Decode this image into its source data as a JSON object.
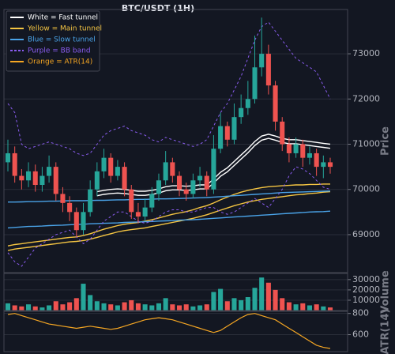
{
  "chart_data": [
    {
      "type": "candlestick",
      "title": "BTC/USDT (1H)",
      "ylabel": "Price",
      "legend": "upper left",
      "grid": true,
      "ylim": [
        68160,
        73980
      ],
      "yticks": [
        69000,
        70000,
        71000,
        72000,
        73000
      ],
      "up_color": "#26a69a",
      "down_color": "#ef5350",
      "open": [
        70600,
        70800,
        70300,
        70200,
        70400,
        70100,
        70300,
        70500,
        69900,
        69700,
        69500,
        69100,
        69500,
        70000,
        70400,
        70700,
        70300,
        70500,
        70000,
        69500,
        69400,
        69600,
        69900,
        70200,
        70600,
        70300,
        70000,
        69900,
        70200,
        70300,
        70000,
        70900,
        71400,
        71100,
        71600,
        71800,
        72000,
        72700,
        73000,
        72300,
        71500,
        71000,
        70800,
        71000,
        70700,
        70800,
        70500,
        70600
      ],
      "high": [
        71100,
        70950,
        70450,
        70600,
        70550,
        70500,
        70750,
        70600,
        70050,
        69850,
        69600,
        69700,
        70200,
        70600,
        70900,
        70800,
        70650,
        70600,
        70100,
        69700,
        69800,
        70050,
        70350,
        70850,
        70700,
        70400,
        70150,
        70350,
        70500,
        70400,
        71200,
        71700,
        71500,
        71900,
        72100,
        72400,
        73400,
        73800,
        73200,
        72400,
        71600,
        71150,
        71150,
        71100,
        70950,
        70900,
        70750,
        70700
      ],
      "low": [
        70400,
        70150,
        70000,
        70050,
        69950,
        69950,
        70150,
        69750,
        69500,
        69300,
        68950,
        69000,
        69400,
        69850,
        70250,
        70150,
        70200,
        69850,
        69350,
        69250,
        69300,
        69500,
        69750,
        70100,
        70150,
        69850,
        69750,
        69800,
        70050,
        69850,
        69900,
        70800,
        70950,
        71000,
        71450,
        71650,
        71900,
        72500,
        72100,
        71300,
        70850,
        70600,
        70700,
        70500,
        70550,
        70300,
        70250,
        70350
      ],
      "close": [
        70800,
        70300,
        70200,
        70400,
        70100,
        70300,
        70500,
        69900,
        69700,
        69500,
        69100,
        69500,
        70000,
        70400,
        70700,
        70300,
        70500,
        70000,
        69500,
        69400,
        69600,
        69900,
        70200,
        70600,
        70300,
        70000,
        69900,
        70200,
        70300,
        70000,
        70900,
        71400,
        71100,
        71600,
        71800,
        72000,
        72700,
        73000,
        72300,
        71500,
        71000,
        70800,
        71000,
        70700,
        70800,
        70500,
        70600,
        70500
      ],
      "series": [
        {
          "name": "White = Fast tunnel",
          "color": "#ffffff",
          "dash": false,
          "upper": [
            null,
            null,
            null,
            null,
            null,
            null,
            null,
            null,
            null,
            null,
            null,
            null,
            null,
            69950,
            69980,
            70000,
            70010,
            70000,
            69980,
            69960,
            69960,
            69980,
            70010,
            70060,
            70080,
            70080,
            70070,
            70080,
            70100,
            70100,
            70230,
            70380,
            70480,
            70620,
            70760,
            70900,
            71060,
            71180,
            71220,
            71180,
            71130,
            71100,
            71100,
            71080,
            71060,
            71040,
            71020,
            71000
          ],
          "lower": [
            null,
            null,
            null,
            null,
            null,
            null,
            null,
            null,
            null,
            null,
            null,
            null,
            null,
            69860,
            69890,
            69910,
            69920,
            69910,
            69890,
            69870,
            69870,
            69890,
            69920,
            69970,
            69990,
            69990,
            69980,
            69990,
            70010,
            70010,
            70140,
            70290,
            70390,
            70530,
            70670,
            70810,
            70970,
            71090,
            71130,
            71090,
            71040,
            71010,
            71010,
            70990,
            70970,
            70950,
            70930,
            70910
          ]
        },
        {
          "name": "Yellow = Main tunnel",
          "color": "#f5c542",
          "dash": false,
          "upper": [
            68750,
            68780,
            68800,
            68820,
            68840,
            68860,
            68880,
            68900,
            68920,
            68940,
            68950,
            68980,
            69020,
            69070,
            69120,
            69160,
            69200,
            69230,
            69250,
            69270,
            69300,
            69330,
            69370,
            69410,
            69450,
            69480,
            69510,
            69550,
            69600,
            69640,
            69700,
            69770,
            69830,
            69890,
            69940,
            69980,
            70010,
            70040,
            70060,
            70070,
            70080,
            70090,
            70100,
            70100,
            70110,
            70110,
            70120,
            70120
          ],
          "lower": [
            68650,
            68680,
            68700,
            68720,
            68740,
            68760,
            68780,
            68800,
            68820,
            68840,
            68850,
            68870,
            68900,
            68940,
            68980,
            69020,
            69060,
            69090,
            69110,
            69130,
            69150,
            69180,
            69210,
            69240,
            69270,
            69300,
            69330,
            69360,
            69400,
            69440,
            69490,
            69540,
            69590,
            69640,
            69680,
            69720,
            69750,
            69780,
            69800,
            69820,
            69840,
            69860,
            69880,
            69890,
            69910,
            69920,
            69940,
            69950
          ]
        },
        {
          "name": "Blue = Slow tunnel",
          "color": "#4aa3e8",
          "dash": false,
          "upper": [
            69720,
            69720,
            69725,
            69730,
            69730,
            69735,
            69740,
            69740,
            69745,
            69750,
            69750,
            69750,
            69755,
            69760,
            69760,
            69765,
            69770,
            69770,
            69775,
            69780,
            69780,
            69785,
            69790,
            69790,
            69795,
            69800,
            69805,
            69810,
            69815,
            69820,
            69830,
            69840,
            69850,
            69860,
            69870,
            69880,
            69890,
            69900,
            69910,
            69920,
            69930,
            69935,
            69940,
            69945,
            69950,
            69955,
            69960,
            69965
          ],
          "lower": [
            69150,
            69160,
            69170,
            69180,
            69185,
            69190,
            69200,
            69205,
            69210,
            69220,
            69225,
            69230,
            69240,
            69245,
            69250,
            69255,
            69260,
            69270,
            69275,
            69280,
            69285,
            69290,
            69300,
            69305,
            69310,
            69320,
            69325,
            69330,
            69340,
            69350,
            69360,
            69370,
            69380,
            69390,
            69400,
            69410,
            69420,
            69430,
            69440,
            69450,
            69460,
            69470,
            69480,
            69490,
            69500,
            69505,
            69510,
            69520
          ]
        },
        {
          "name": "Purple = BB band",
          "color": "#8a5cf0",
          "dash": true,
          "upper": [
            71900,
            71700,
            71000,
            70900,
            70950,
            71000,
            71050,
            71000,
            70950,
            70900,
            70800,
            70750,
            70800,
            71000,
            71200,
            71300,
            71350,
            71400,
            71300,
            71250,
            71200,
            71100,
            71050,
            71150,
            71100,
            71050,
            71000,
            70950,
            71000,
            71100,
            71400,
            71700,
            71900,
            72200,
            72500,
            72900,
            73300,
            73600,
            73700,
            73500,
            73300,
            73100,
            72900,
            72800,
            72700,
            72600,
            72300,
            72000
          ],
          "lower": [
            68600,
            68400,
            68300,
            68500,
            68700,
            68800,
            68900,
            69000,
            69050,
            69100,
            68950,
            68800,
            68900,
            69100,
            69300,
            69400,
            69500,
            69500,
            69400,
            69300,
            69250,
            69300,
            69400,
            69500,
            69550,
            69550,
            69500,
            69500,
            69550,
            69600,
            69600,
            69500,
            69450,
            69500,
            69600,
            69700,
            69800,
            69700,
            69600,
            69800,
            70000,
            70300,
            70500,
            70450,
            70350,
            70200,
            70050,
            70000
          ]
        }
      ]
    },
    {
      "type": "bar",
      "ylabel": "Volume",
      "ylim": [
        0,
        36000
      ],
      "yticks": [
        10000,
        20000,
        30000
      ],
      "values": [
        7000,
        5000,
        4000,
        6000,
        4000,
        3000,
        5000,
        9000,
        6000,
        8000,
        12000,
        26000,
        15000,
        9000,
        7000,
        6000,
        5000,
        8000,
        10000,
        7000,
        6000,
        5000,
        7000,
        12000,
        6000,
        5000,
        6000,
        4000,
        5000,
        6000,
        18000,
        21000,
        9000,
        12000,
        10000,
        13000,
        22000,
        32000,
        27000,
        20000,
        12000,
        8000,
        6000,
        7000,
        5000,
        6000,
        4000,
        3000
      ]
    },
    {
      "type": "line",
      "ylabel": "ATR(14)",
      "ylim": [
        440,
        820
      ],
      "yticks": [
        600,
        800
      ],
      "series": [
        {
          "name": "Orange = ATR(14)",
          "color": "#f5a623",
          "values": [
            790,
            800,
            780,
            760,
            740,
            720,
            700,
            690,
            680,
            670,
            660,
            670,
            680,
            670,
            660,
            650,
            660,
            680,
            700,
            720,
            740,
            750,
            760,
            750,
            740,
            720,
            700,
            680,
            660,
            640,
            620,
            640,
            680,
            720,
            760,
            790,
            800,
            780,
            760,
            740,
            700,
            660,
            620,
            580,
            540,
            500,
            480,
            470
          ]
        }
      ]
    }
  ]
}
